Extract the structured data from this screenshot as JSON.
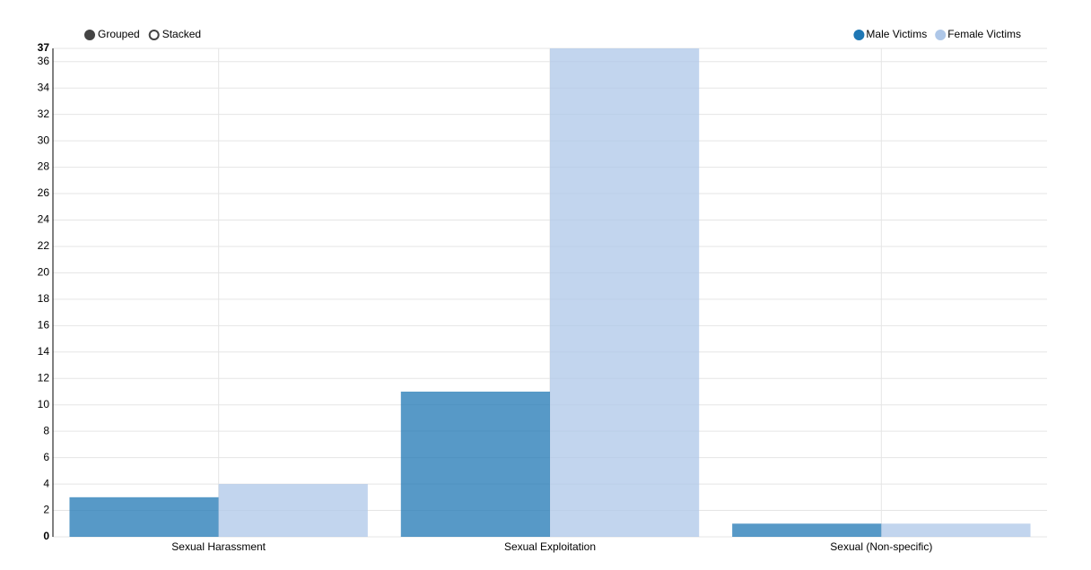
{
  "chart_data": {
    "type": "bar",
    "controls": [
      "Grouped",
      "Stacked"
    ],
    "categories": [
      "Sexual Harassment",
      "Sexual Exploitation",
      "Sexual (Non-specific)"
    ],
    "series": [
      {
        "name": "Male Victims",
        "color": "#1f77b4",
        "values": [
          3,
          11,
          1
        ]
      },
      {
        "name": "Female Victims",
        "color": "#aec7e8",
        "values": [
          4,
          37,
          1
        ]
      }
    ],
    "ylim": [
      0,
      37
    ],
    "yticks": [
      0,
      2,
      4,
      6,
      8,
      10,
      12,
      14,
      16,
      18,
      20,
      22,
      24,
      26,
      28,
      30,
      32,
      34,
      36,
      37
    ],
    "grid": true
  }
}
